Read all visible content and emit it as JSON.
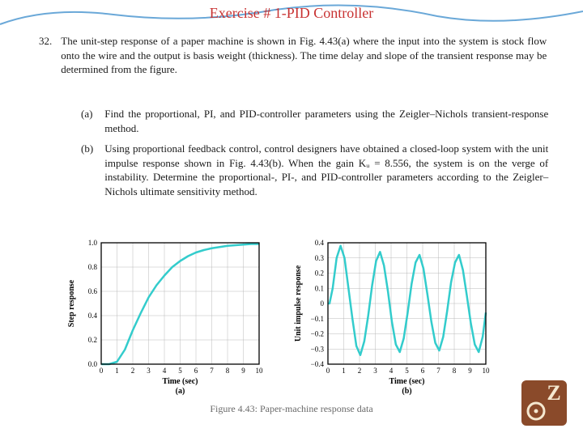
{
  "title": "Exercise # 1-PID Controller",
  "title_color": "#c83232",
  "banner": {
    "fill": "#ffffff",
    "stroke": "#6aa8d8",
    "stroke_width": 2
  },
  "problem": {
    "number": "32.",
    "text": "The unit-step response of a paper machine is shown in Fig. 4.43(a) where the input into the system is stock flow onto the wire and the output is basis weight (thickness). The time delay and slope of the transient response may be determined from the figure."
  },
  "subparts": [
    {
      "label": "(a)",
      "text": "Find the proportional, PI, and PID-controller parameters using the Zeigler–Nichols transient-response method."
    },
    {
      "label": "(b)",
      "text": "Using proportional feedback control, control designers have obtained a closed-loop system with the unit impulse response shown in Fig. 4.43(b). When the gain Kᵤ = 8.556, the system is on the verge of instability. Determine the proportional-, PI-, and PID-controller parameters according to the Zeigler–Nichols ultimate sensitivity method."
    }
  ],
  "caption": "Figure 4.43: Paper-machine response data",
  "chart_a": {
    "type": "line",
    "ylabel": "Step response",
    "xlabel": "Time (sec)",
    "sublabel": "(a)",
    "line_color": "#33cccc",
    "line_width": 2.5,
    "border_color": "#000000",
    "grid_color": "#b8b8b8",
    "background": "#ffffff",
    "xlim": [
      0,
      10
    ],
    "ylim": [
      0.0,
      1.0
    ],
    "xticks": [
      0,
      1,
      2,
      3,
      4,
      5,
      6,
      7,
      8,
      9,
      10
    ],
    "yticks": [
      0.0,
      0.2,
      0.4,
      0.6,
      0.8,
      1.0
    ],
    "data": [
      [
        0.0,
        0.0
      ],
      [
        0.5,
        0.0
      ],
      [
        1.0,
        0.02
      ],
      [
        1.5,
        0.12
      ],
      [
        2.0,
        0.28
      ],
      [
        2.5,
        0.42
      ],
      [
        3.0,
        0.55
      ],
      [
        3.5,
        0.65
      ],
      [
        4.0,
        0.73
      ],
      [
        4.5,
        0.8
      ],
      [
        5.0,
        0.85
      ],
      [
        5.5,
        0.89
      ],
      [
        6.0,
        0.92
      ],
      [
        6.5,
        0.94
      ],
      [
        7.0,
        0.955
      ],
      [
        7.5,
        0.965
      ],
      [
        8.0,
        0.975
      ],
      [
        8.5,
        0.98
      ],
      [
        9.0,
        0.985
      ],
      [
        9.5,
        0.99
      ],
      [
        10.0,
        0.99
      ]
    ]
  },
  "chart_b": {
    "type": "line",
    "ylabel": "Unit impulse response",
    "xlabel": "Time (sec)",
    "sublabel": "(b)",
    "line_color": "#33cccc",
    "line_width": 2.5,
    "border_color": "#000000",
    "grid_color": "#b8b8b8",
    "background": "#ffffff",
    "xlim": [
      0,
      10
    ],
    "ylim": [
      -0.4,
      0.4
    ],
    "xticks": [
      0,
      1,
      2,
      3,
      4,
      5,
      6,
      7,
      8,
      9,
      10
    ],
    "yticks": [
      -0.4,
      -0.3,
      -0.2,
      -0.1,
      0,
      0.1,
      0.2,
      0.3,
      0.4
    ],
    "data": [
      [
        0.0,
        0.0
      ],
      [
        0.1,
        0.0
      ],
      [
        0.3,
        0.1
      ],
      [
        0.55,
        0.3
      ],
      [
        0.8,
        0.38
      ],
      [
        1.05,
        0.3
      ],
      [
        1.3,
        0.1
      ],
      [
        1.55,
        -0.1
      ],
      [
        1.8,
        -0.28
      ],
      [
        2.05,
        -0.34
      ],
      [
        2.3,
        -0.25
      ],
      [
        2.55,
        -0.08
      ],
      [
        2.8,
        0.12
      ],
      [
        3.05,
        0.28
      ],
      [
        3.3,
        0.34
      ],
      [
        3.55,
        0.25
      ],
      [
        3.8,
        0.08
      ],
      [
        4.05,
        -0.12
      ],
      [
        4.3,
        -0.27
      ],
      [
        4.55,
        -0.32
      ],
      [
        4.8,
        -0.23
      ],
      [
        5.05,
        -0.06
      ],
      [
        5.3,
        0.13
      ],
      [
        5.55,
        0.27
      ],
      [
        5.8,
        0.32
      ],
      [
        6.05,
        0.23
      ],
      [
        6.3,
        0.06
      ],
      [
        6.55,
        -0.12
      ],
      [
        6.8,
        -0.26
      ],
      [
        7.05,
        -0.31
      ],
      [
        7.3,
        -0.22
      ],
      [
        7.55,
        -0.05
      ],
      [
        7.8,
        0.14
      ],
      [
        8.05,
        0.27
      ],
      [
        8.3,
        0.32
      ],
      [
        8.55,
        0.22
      ],
      [
        8.8,
        0.05
      ],
      [
        9.05,
        -0.13
      ],
      [
        9.3,
        -0.27
      ],
      [
        9.55,
        -0.32
      ],
      [
        9.8,
        -0.22
      ],
      [
        10.0,
        -0.06
      ]
    ]
  },
  "logo": {
    "bg": "#8a4a2a",
    "fg": "#f5e8d0"
  }
}
